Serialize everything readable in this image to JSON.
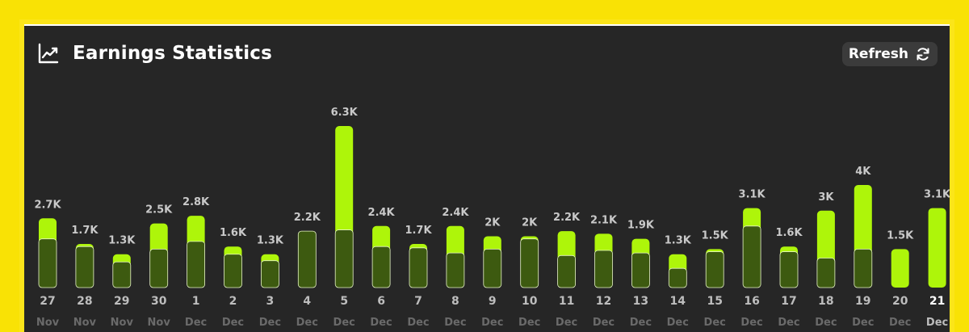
{
  "header": {
    "title": "Earnings Statistics",
    "refresh_label": "Refresh"
  },
  "colors": {
    "accent": "#aef50a",
    "dark_fill": "#3d5a10",
    "panel": "#262626",
    "frame": "#f9e205"
  },
  "chart_data": {
    "type": "bar",
    "title": "Earnings Statistics",
    "categories": [
      {
        "day": "27",
        "month": "Nov"
      },
      {
        "day": "28",
        "month": "Nov"
      },
      {
        "day": "29",
        "month": "Nov"
      },
      {
        "day": "30",
        "month": "Nov"
      },
      {
        "day": "1",
        "month": "Dec"
      },
      {
        "day": "2",
        "month": "Dec"
      },
      {
        "day": "3",
        "month": "Dec"
      },
      {
        "day": "4",
        "month": "Dec"
      },
      {
        "day": "5",
        "month": "Dec"
      },
      {
        "day": "6",
        "month": "Dec"
      },
      {
        "day": "7",
        "month": "Dec"
      },
      {
        "day": "8",
        "month": "Dec"
      },
      {
        "day": "9",
        "month": "Dec"
      },
      {
        "day": "10",
        "month": "Dec"
      },
      {
        "day": "11",
        "month": "Dec"
      },
      {
        "day": "12",
        "month": "Dec"
      },
      {
        "day": "13",
        "month": "Dec"
      },
      {
        "day": "14",
        "month": "Dec"
      },
      {
        "day": "15",
        "month": "Dec"
      },
      {
        "day": "16",
        "month": "Dec"
      },
      {
        "day": "17",
        "month": "Dec"
      },
      {
        "day": "18",
        "month": "Dec"
      },
      {
        "day": "19",
        "month": "Dec"
      },
      {
        "day": "20",
        "month": "Dec"
      },
      {
        "day": "21",
        "month": "Dec"
      }
    ],
    "values": [
      2.7,
      1.7,
      1.3,
      2.5,
      2.8,
      1.6,
      1.3,
      2.2,
      6.3,
      2.4,
      1.7,
      2.4,
      2.0,
      2.0,
      2.2,
      2.1,
      1.9,
      1.3,
      1.5,
      3.1,
      1.6,
      3.0,
      4.0,
      1.5,
      3.1
    ],
    "inner_values": [
      1.9,
      1.6,
      1.0,
      1.5,
      1.8,
      1.3,
      1.05,
      2.2,
      2.25,
      1.6,
      1.55,
      1.35,
      1.5,
      1.9,
      1.25,
      1.45,
      1.35,
      0.75,
      1.4,
      2.4,
      1.4,
      1.15,
      1.5,
      0,
      0
    ],
    "labels": [
      "2.7K",
      "1.7K",
      "1.3K",
      "2.5K",
      "2.8K",
      "1.6K",
      "1.3K",
      "2.2K",
      "6.3K",
      "2.4K",
      "1.7K",
      "2.4K",
      "2K",
      "2K",
      "2.2K",
      "2.1K",
      "1.9K",
      "1.3K",
      "1.5K",
      "3.1K",
      "1.6K",
      "3K",
      "4K",
      "1.5K",
      "3.1K"
    ],
    "highlighted_index": 24,
    "unit": "K"
  }
}
